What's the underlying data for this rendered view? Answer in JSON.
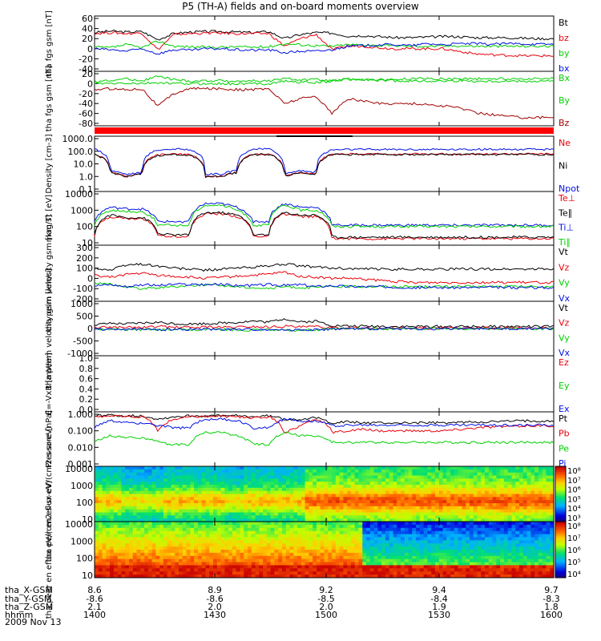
{
  "title": "P5 (TH-A) fields and on-board moments overview",
  "date": "2009 Nov 13",
  "colors": {
    "black": "#000000",
    "red": "#e8000b",
    "green": "#00d000",
    "blue": "#0010e0",
    "darkred": "#a00000"
  },
  "ephemeris": {
    "row_labels": [
      "tha_X-GSM",
      "tha_Y-GSM",
      "tha_Z-GSM",
      "hhmm"
    ],
    "columns": [
      {
        "x": "8.6",
        "y": "-8.6",
        "z": "2.1",
        "t": "1400"
      },
      {
        "x": "8.9",
        "y": "-8.6",
        "z": "2.0",
        "t": "1430"
      },
      {
        "x": "9.2",
        "y": "-8.5",
        "z": "2.0",
        "t": "1500"
      },
      {
        "x": "9.4",
        "y": "-8.4",
        "z": "1.9",
        "t": "1530"
      },
      {
        "x": "9.7",
        "y": "-8.3",
        "z": "1.8",
        "t": "1600"
      }
    ]
  },
  "chart_data": [
    {
      "type": "line",
      "ylabel": "tha fgs gsm [nT]",
      "ylim": [
        -40,
        60
      ],
      "yticks": [
        "60",
        "40",
        "20",
        "0",
        "-20",
        "-40"
      ],
      "legend": [
        "Bt",
        "bz",
        "by",
        "bx"
      ],
      "series": [
        {
          "name": "Bt",
          "values": [
            32,
            35,
            33,
            34,
            18,
            30,
            33,
            34,
            34,
            33,
            32,
            34,
            20,
            28,
            32,
            31,
            25,
            26,
            24,
            22,
            22,
            23,
            24,
            24,
            22,
            22,
            22,
            21,
            20,
            20
          ]
        },
        {
          "name": "bz",
          "values": [
            30,
            32,
            30,
            31,
            -2,
            28,
            30,
            31,
            31,
            30,
            30,
            30,
            5,
            20,
            28,
            -2,
            5,
            5,
            2,
            0,
            0,
            0,
            0,
            -5,
            -10,
            -12,
            -13,
            -14,
            -14,
            -14
          ]
        },
        {
          "name": "by",
          "values": [
            3,
            2,
            8,
            2,
            15,
            5,
            4,
            3,
            3,
            4,
            3,
            4,
            10,
            8,
            6,
            5,
            8,
            8,
            6,
            6,
            5,
            5,
            5,
            6,
            5,
            5,
            5,
            5,
            5,
            5
          ]
        },
        {
          "name": "bx",
          "values": [
            0,
            -2,
            -5,
            0,
            -10,
            -2,
            -3,
            0,
            0,
            -2,
            -3,
            -2,
            -8,
            -5,
            -5,
            -2,
            5,
            6,
            8,
            8,
            6,
            10,
            8,
            10,
            10,
            9,
            10,
            10,
            9,
            9
          ]
        }
      ]
    },
    {
      "type": "line",
      "ylabel": "tha fgs gsm [nT]",
      "ylim": [
        -80,
        20
      ],
      "yticks": [
        "20",
        "0",
        "-20",
        "-40",
        "-60",
        "-80"
      ],
      "legend": [
        "Bx",
        "By",
        "Bz"
      ],
      "series": [
        {
          "name": "Bx",
          "values": [
            0,
            0,
            1,
            0,
            2,
            0,
            0,
            0,
            0,
            0,
            0,
            0,
            5,
            3,
            2,
            5,
            10,
            8,
            8,
            8,
            10,
            10,
            10,
            10,
            10,
            10,
            10,
            10,
            10,
            10
          ]
        },
        {
          "name": "By",
          "values": [
            5,
            6,
            10,
            6,
            15,
            8,
            5,
            6,
            6,
            5,
            6,
            5,
            10,
            8,
            8,
            5,
            8,
            8,
            6,
            6,
            5,
            5,
            5,
            6,
            5,
            5,
            5,
            5,
            5,
            5
          ]
        },
        {
          "name": "Bz",
          "values": [
            -12,
            -10,
            -12,
            -10,
            -45,
            -20,
            -10,
            -10,
            -10,
            -12,
            -12,
            -10,
            -40,
            -30,
            -25,
            -60,
            -30,
            -35,
            -40,
            -40,
            -40,
            -42,
            -45,
            -48,
            -58,
            -62,
            -65,
            -68,
            -68,
            -68
          ]
        }
      ]
    },
    {
      "type": "line",
      "ylabel": "Density [cm-3]",
      "scale": "log",
      "ylim": [
        0.1,
        1000
      ],
      "yticks": [
        "1000.0",
        "100.0",
        "10.0",
        "1.0",
        "0.1"
      ],
      "legend": [
        "Ne",
        "Ni",
        "Npot"
      ],
      "series": [
        {
          "name": "Ne",
          "values": [
            60,
            2,
            1,
            1.5,
            50,
            60,
            55,
            1,
            1,
            2,
            60,
            60,
            1,
            2,
            1.5,
            60,
            60,
            60,
            60,
            60,
            60,
            60,
            60,
            60,
            60,
            60,
            60,
            60,
            60,
            60
          ]
        },
        {
          "name": "Ni",
          "values": [
            55,
            2,
            1,
            1.5,
            45,
            55,
            50,
            1,
            1,
            2,
            55,
            55,
            1,
            2,
            1.5,
            55,
            55,
            55,
            55,
            55,
            55,
            55,
            55,
            55,
            55,
            55,
            55,
            55,
            55,
            55
          ]
        },
        {
          "name": "Npot",
          "values": [
            150,
            3,
            1.5,
            2,
            130,
            150,
            140,
            1.5,
            1.5,
            3,
            150,
            150,
            1.5,
            3,
            2,
            130,
            140,
            140,
            140,
            140,
            140,
            140,
            140,
            140,
            140,
            140,
            140,
            140,
            140,
            140
          ]
        }
      ]
    },
    {
      "type": "line",
      "ylabel": "mag Tt [eV]",
      "scale": "log",
      "ylim": [
        10,
        10000
      ],
      "yticks": [
        "10000",
        "1000",
        "100",
        "10"
      ],
      "legend": [
        "Te⊥",
        "Te∥",
        "Ti⊥",
        "Ti∥"
      ],
      "series": [
        {
          "name": "Te⊥",
          "values": [
            25,
            400,
            300,
            300,
            30,
            25,
            25,
            600,
            600,
            400,
            25,
            25,
            600,
            400,
            400,
            18,
            18,
            18,
            17,
            18,
            18,
            18,
            18,
            18,
            18,
            18,
            18,
            18,
            18,
            18
          ]
        },
        {
          "name": "Te∥",
          "values": [
            30,
            500,
            350,
            350,
            35,
            30,
            30,
            700,
            700,
            500,
            30,
            30,
            700,
            500,
            500,
            22,
            22,
            22,
            22,
            22,
            22,
            22,
            22,
            22,
            22,
            22,
            22,
            22,
            22,
            22
          ]
        },
        {
          "name": "Ti⊥",
          "values": [
            200,
            1500,
            1200,
            1200,
            200,
            200,
            200,
            2500,
            2500,
            1500,
            200,
            200,
            2500,
            1500,
            1500,
            120,
            120,
            120,
            120,
            120,
            120,
            120,
            120,
            120,
            120,
            120,
            120,
            120,
            120,
            120
          ]
        },
        {
          "name": "Ti∥",
          "values": [
            120,
            1000,
            800,
            800,
            120,
            120,
            120,
            2000,
            2000,
            1000,
            120,
            120,
            2000,
            1000,
            1000,
            100,
            100,
            100,
            100,
            100,
            100,
            100,
            100,
            100,
            100,
            100,
            100,
            100,
            100,
            100
          ]
        }
      ]
    },
    {
      "type": "line",
      "ylabel": "tha peim velocity gsm [km/s]",
      "ylim": [
        -200,
        300
      ],
      "yticks": [
        "300",
        "200",
        "100",
        "0",
        "-100",
        "-200"
      ],
      "legend": [
        "Vt",
        "Vz",
        "Vy",
        "Vx"
      ],
      "series": [
        {
          "name": "Vt",
          "values": [
            100,
            80,
            130,
            140,
            120,
            100,
            90,
            80,
            90,
            100,
            110,
            120,
            140,
            120,
            110,
            100,
            95,
            90,
            90,
            90,
            90,
            90,
            90,
            90,
            90,
            90,
            90,
            90,
            90,
            90
          ]
        },
        {
          "name": "Vz",
          "values": [
            30,
            10,
            40,
            50,
            30,
            20,
            10,
            0,
            10,
            20,
            30,
            40,
            60,
            20,
            10,
            0,
            0,
            -10,
            -20,
            -30,
            -40,
            -40,
            -40,
            -40,
            -40,
            -40,
            -40,
            -40,
            -40,
            -40
          ]
        },
        {
          "name": "Vy",
          "values": [
            -40,
            -60,
            -80,
            -100,
            -90,
            -80,
            -70,
            -60,
            -70,
            -80,
            -90,
            -100,
            -80,
            -90,
            -90,
            -80,
            -80,
            -80,
            -80,
            -80,
            -80,
            -80,
            -80,
            -80,
            -80,
            -80,
            -80,
            -80,
            -80,
            -80
          ]
        },
        {
          "name": "Vx",
          "values": [
            -70,
            -60,
            -80,
            -60,
            -70,
            -60,
            -60,
            -60,
            -60,
            -70,
            -70,
            -60,
            -70,
            -60,
            -80,
            -70,
            -80,
            -80,
            -80,
            -85,
            -90,
            -90,
            -90,
            -90,
            -90,
            -90,
            -90,
            -90,
            -90,
            -90
          ]
        }
      ]
    },
    {
      "type": "line",
      "ylabel": "tha peem velocity gsm [km/s]",
      "ylim": [
        -1000,
        1000
      ],
      "yticks": [
        "1000",
        "500",
        "0",
        "-500",
        "-1000"
      ],
      "legend": [
        "Vt",
        "Vz",
        "Vy",
        "Vx"
      ],
      "series": [
        {
          "name": "Vt",
          "values": [
            150,
            200,
            180,
            220,
            250,
            200,
            180,
            200,
            220,
            250,
            300,
            260,
            400,
            250,
            300,
            120,
            100,
            90,
            90,
            80,
            80,
            80,
            80,
            80,
            80,
            80,
            80,
            80,
            80,
            80
          ]
        },
        {
          "name": "Vz",
          "values": [
            30,
            60,
            50,
            40,
            80,
            50,
            40,
            60,
            50,
            60,
            80,
            60,
            100,
            60,
            80,
            20,
            10,
            10,
            10,
            10,
            10,
            10,
            10,
            10,
            10,
            10,
            10,
            10,
            10,
            10
          ]
        },
        {
          "name": "Vy",
          "values": [
            -30,
            -40,
            -50,
            -40,
            -60,
            -50,
            -40,
            -50,
            -40,
            -60,
            -60,
            -50,
            -80,
            -60,
            -70,
            -20,
            -10,
            -10,
            -10,
            -10,
            -10,
            -10,
            -10,
            -10,
            -10,
            -10,
            -10,
            -10,
            -10,
            -10
          ]
        },
        {
          "name": "Vx",
          "values": [
            -20,
            -30,
            -40,
            -20,
            -50,
            -30,
            -30,
            -30,
            -30,
            -40,
            -40,
            -30,
            -60,
            -40,
            -50,
            -20,
            -10,
            -10,
            -10,
            -10,
            -10,
            -10,
            -10,
            -10,
            -10,
            -10,
            -10,
            -10,
            -10,
            -10
          ]
        }
      ]
    },
    {
      "type": "line",
      "ylabel": "E=-VxB [mV/m]",
      "ylim": [
        0,
        1
      ],
      "yticks": [
        "1.0",
        "0.8",
        "0.6",
        "0.4",
        "0.2",
        "0.0"
      ],
      "legend": [
        "Ez",
        "Ey",
        "Ex"
      ],
      "series": []
    },
    {
      "type": "line",
      "ylabel": "Pressure [nPa]",
      "scale": "log",
      "ylim": [
        0.001,
        1
      ],
      "yticks": [
        "1.000",
        "0.100",
        "0.010",
        "0.001"
      ],
      "legend": [
        "Pt",
        "Pb",
        "Pe",
        "Pi"
      ],
      "series": [
        {
          "name": "Pt",
          "values": [
            0.8,
            0.9,
            0.8,
            0.8,
            0.5,
            0.7,
            0.8,
            0.8,
            0.8,
            0.8,
            0.7,
            0.8,
            0.5,
            0.5,
            0.6,
            0.3,
            0.35,
            0.3,
            0.3,
            0.3,
            0.3,
            0.3,
            0.3,
            0.32,
            0.35,
            0.35,
            0.38,
            0.4,
            0.4,
            0.4
          ]
        },
        {
          "name": "Pb",
          "values": [
            0.7,
            0.8,
            0.7,
            0.7,
            0.08,
            0.5,
            0.7,
            0.75,
            0.75,
            0.7,
            0.6,
            0.7,
            0.05,
            0.2,
            0.5,
            0.08,
            0.1,
            0.12,
            0.1,
            0.1,
            0.1,
            0.1,
            0.1,
            0.12,
            0.15,
            0.17,
            0.18,
            0.2,
            0.2,
            0.2
          ]
        },
        {
          "name": "Pe",
          "values": [
            0.02,
            0.05,
            0.04,
            0.04,
            0.02,
            0.015,
            0.015,
            0.08,
            0.08,
            0.05,
            0.015,
            0.015,
            0.08,
            0.05,
            0.05,
            0.02,
            0.02,
            0.02,
            0.02,
            0.02,
            0.02,
            0.02,
            0.02,
            0.02,
            0.02,
            0.02,
            0.02,
            0.02,
            0.02,
            0.02
          ]
        },
        {
          "name": "Pi",
          "values": [
            0.15,
            0.4,
            0.3,
            0.3,
            0.2,
            0.15,
            0.15,
            0.5,
            0.5,
            0.4,
            0.15,
            0.15,
            0.5,
            0.4,
            0.4,
            0.2,
            0.22,
            0.22,
            0.22,
            0.22,
            0.22,
            0.22,
            0.22,
            0.22,
            0.22,
            0.22,
            0.22,
            0.22,
            0.22,
            0.22
          ]
        }
      ]
    },
    {
      "type": "heatmap",
      "ylabel": "tha peir en eflux eV/(cm2-s-sr-eV)",
      "scale": "log",
      "ylim": [
        10,
        30000
      ],
      "yticks": [
        "10000",
        "1000",
        "100",
        "10"
      ],
      "colorbar": {
        "ticks": [
          "10⁸",
          "10⁷",
          "10⁶",
          "10⁵",
          "10⁴",
          "10³"
        ]
      }
    },
    {
      "type": "heatmap",
      "ylabel": "tha peer en eflux eV/(cm2-s-sr-eV)",
      "scale": "log",
      "ylim": [
        10,
        30000
      ],
      "yticks": [
        "10000",
        "1000",
        "100",
        "10"
      ],
      "colorbar": {
        "ticks": [
          "10⁸",
          "10⁷",
          "10⁶",
          "10⁵",
          "10⁴"
        ]
      }
    }
  ]
}
